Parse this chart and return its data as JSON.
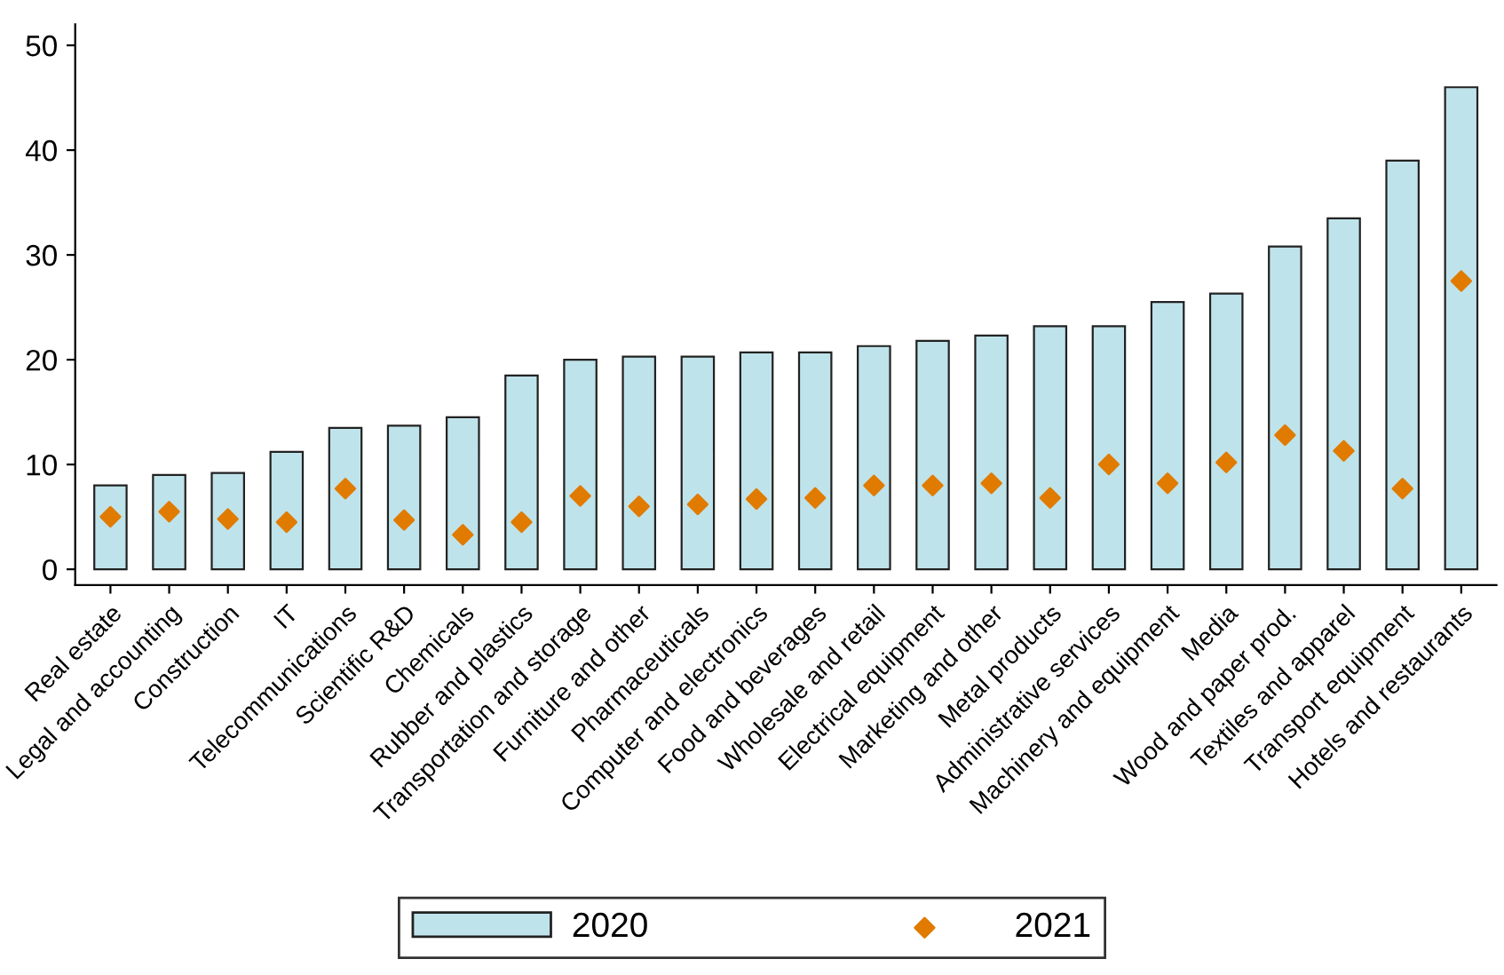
{
  "chart_data": {
    "type": "bar",
    "categories": [
      "Real estate",
      "Legal and accounting",
      "Construction",
      "IT",
      "Telecommunications",
      "Scientific R&D",
      "Chemicals",
      "Rubber and plastics",
      "Transportation and storage",
      "Furniture and other",
      "Pharmaceuticals",
      "Computer and electronics",
      "Food and beverages",
      "Wholesale and retail",
      "Electrical equipment",
      "Marketing and other",
      "Metal products",
      "Administrative services",
      "Machinery and equipment",
      "Media",
      "Wood and paper prod.",
      "Textiles and apparel",
      "Transport equipment",
      "Hotels and restaurants"
    ],
    "series": [
      {
        "name": "2020",
        "color": "#bfe3ea",
        "values": [
          8.0,
          9.0,
          9.2,
          11.2,
          13.5,
          13.7,
          14.5,
          18.5,
          20.0,
          20.3,
          20.3,
          20.7,
          20.7,
          21.3,
          21.8,
          22.3,
          23.2,
          23.2,
          25.5,
          26.3,
          30.8,
          33.5,
          39.0,
          46.0
        ]
      },
      {
        "name": "2021",
        "type": "scatter",
        "color": "#e07b00",
        "marker": "diamond",
        "values": [
          5.0,
          5.5,
          4.8,
          4.5,
          7.7,
          4.7,
          3.3,
          4.5,
          7.0,
          6.0,
          6.2,
          6.7,
          6.8,
          8.0,
          8.0,
          8.2,
          6.8,
          10.0,
          8.2,
          10.2,
          12.8,
          11.3,
          7.7,
          27.5
        ]
      }
    ],
    "ylim": [
      -1.5,
      52
    ],
    "yticks": [
      0,
      10,
      20,
      30,
      40,
      50
    ],
    "grid": false,
    "legend": "bottom"
  }
}
